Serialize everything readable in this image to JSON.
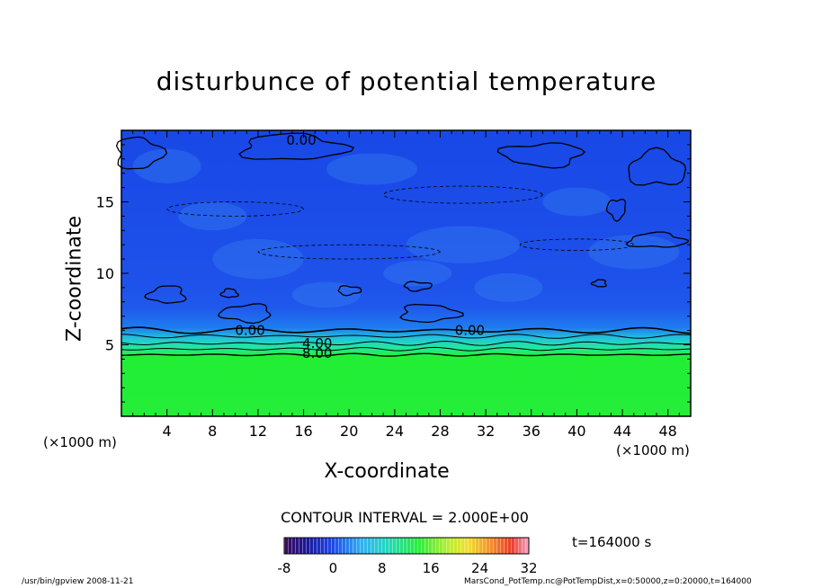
{
  "chart_data": {
    "type": "heatmap",
    "title": "disturbunce of potential temperature",
    "xlabel": "X-coordinate",
    "ylabel": "Z-coordinate",
    "x_unit": "(×1000 m)",
    "x_unit_right": "(×1000 m)",
    "xlim": [
      0,
      50
    ],
    "ylim": [
      0,
      20
    ],
    "x_ticks": [
      4,
      8,
      12,
      16,
      20,
      24,
      28,
      32,
      36,
      40,
      44,
      48
    ],
    "y_ticks": [
      5,
      10,
      15
    ],
    "contour_interval_text": "CONTOUR INTERVAL = 2.000E+00",
    "contour_labels": [
      {
        "text": "0.00",
        "x": 15.8,
        "z": 19.3
      },
      {
        "text": "0.00",
        "x": 11.3,
        "z": 6.0
      },
      {
        "text": "4.00",
        "x": 17.2,
        "z": 5.1
      },
      {
        "text": "8.00",
        "x": 17.2,
        "z": 4.4
      },
      {
        "text": "0.00",
        "x": 30.6,
        "z": 6.0
      }
    ],
    "colorbar": {
      "min": -8,
      "max": 32,
      "tick_labels": [
        "-8",
        "0",
        "8",
        "16",
        "24",
        "32"
      ],
      "tick_values": [
        -8,
        0,
        8,
        16,
        24,
        32
      ]
    },
    "field_summary": [
      {
        "z_range": [
          0,
          4
        ],
        "value": 12
      },
      {
        "z_range": [
          4,
          6
        ],
        "value": 4
      },
      {
        "z_range": [
          6,
          20
        ],
        "value": -2
      }
    ]
  },
  "time_label": "t=164000 s",
  "footer_left": "/usr/bin/gpview   2008-11-21",
  "footer_right": "MarsCond_PotTemp.nc@PotTempDist,x=0:50000,z=0:20000,t=164000",
  "colors": {
    "upper_field": "#1a4aee",
    "upper_field_light": "#2f74f2",
    "transition": "#20d0c0",
    "lower_field": "#22ee36",
    "contour": "#000000"
  }
}
